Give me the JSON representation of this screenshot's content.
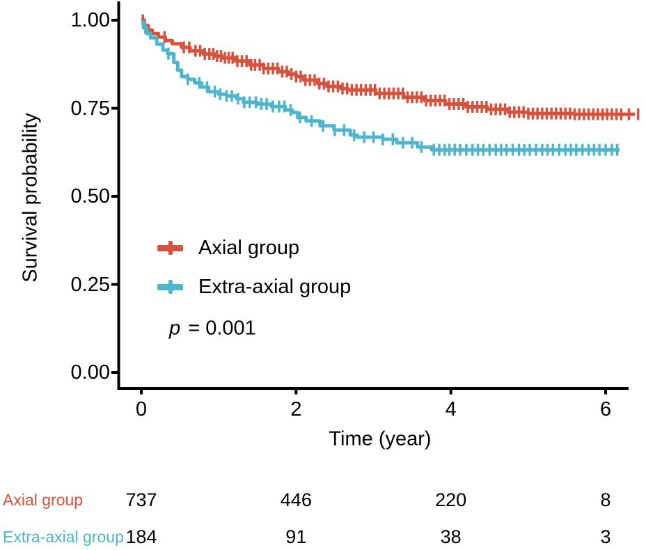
{
  "figure": {
    "background": "#ffffff",
    "axis_color": "#000000",
    "text_color": "#000000"
  },
  "chart_data": {
    "type": "line",
    "subtype": "kaplan-meier-step-survival",
    "title": "",
    "xlabel": "Time (year)",
    "ylabel": "Survival probability",
    "xlim": [
      0,
      6.5
    ],
    "ylim": [
      0,
      1.0
    ],
    "grid": false,
    "legend_position": "inside-center-left",
    "xticks": {
      "values": [
        0,
        2,
        4,
        6
      ],
      "labels": [
        "0",
        "2",
        "4",
        "6"
      ]
    },
    "yticks": {
      "values": [
        0,
        0.25,
        0.5,
        0.75,
        1.0
      ],
      "labels": [
        "0.00",
        "0.25",
        "0.50",
        "0.75",
        "1.00"
      ]
    },
    "p_italic": "p",
    "p_rest": " = 0.001",
    "series": [
      {
        "name": "Axial group",
        "color": "#D6523C",
        "steps": [
          [
            0,
            1.0
          ],
          [
            0.04,
            0.985
          ],
          [
            0.09,
            0.972
          ],
          [
            0.14,
            0.962
          ],
          [
            0.22,
            0.952
          ],
          [
            0.31,
            0.942
          ],
          [
            0.4,
            0.933
          ],
          [
            0.52,
            0.923
          ],
          [
            0.63,
            0.913
          ],
          [
            0.8,
            0.904
          ],
          [
            0.95,
            0.898
          ],
          [
            1.05,
            0.893
          ],
          [
            1.22,
            0.884
          ],
          [
            1.4,
            0.873
          ],
          [
            1.58,
            0.863
          ],
          [
            1.77,
            0.854
          ],
          [
            1.9,
            0.847
          ],
          [
            2.0,
            0.84
          ],
          [
            2.1,
            0.83
          ],
          [
            2.28,
            0.82
          ],
          [
            2.4,
            0.812
          ],
          [
            2.58,
            0.806
          ],
          [
            2.67,
            0.802
          ],
          [
            3.03,
            0.792
          ],
          [
            3.39,
            0.781
          ],
          [
            3.66,
            0.772
          ],
          [
            3.93,
            0.762
          ],
          [
            4.2,
            0.754
          ],
          [
            4.47,
            0.747
          ],
          [
            4.74,
            0.739
          ],
          [
            5.0,
            0.735
          ],
          [
            5.6,
            0.733
          ],
          [
            6.38,
            0.733
          ]
        ],
        "censor_times": [
          0.02,
          0.3,
          0.55,
          0.62,
          0.7,
          0.76,
          0.82,
          0.88,
          0.93,
          0.98,
          1.03,
          1.08,
          1.13,
          1.18,
          1.24,
          1.3,
          1.36,
          1.42,
          1.47,
          1.53,
          1.58,
          1.64,
          1.7,
          1.76,
          1.82,
          1.88,
          1.94,
          2.0,
          2.06,
          2.12,
          2.18,
          2.24,
          2.3,
          2.36,
          2.42,
          2.48,
          2.54,
          2.6,
          2.66,
          2.72,
          2.78,
          2.84,
          2.9,
          2.96,
          3.02,
          3.08,
          3.14,
          3.2,
          3.26,
          3.32,
          3.38,
          3.44,
          3.5,
          3.56,
          3.62,
          3.68,
          3.74,
          3.8,
          3.86,
          3.92,
          3.98,
          4.04,
          4.1,
          4.16,
          4.22,
          4.28,
          4.34,
          4.4,
          4.46,
          4.52,
          4.58,
          4.64,
          4.7,
          4.76,
          4.82,
          4.88,
          4.94,
          5.0,
          5.06,
          5.12,
          5.18,
          5.24,
          5.3,
          5.36,
          5.42,
          5.48,
          5.54,
          5.6,
          5.66,
          5.72,
          5.78,
          5.84,
          5.9,
          5.96,
          6.02,
          6.08,
          6.14,
          6.2,
          6.3,
          6.42
        ]
      },
      {
        "name": "Extra-axial group",
        "color": "#4DB6CD",
        "steps": [
          [
            0,
            0.995
          ],
          [
            0.03,
            0.978
          ],
          [
            0.07,
            0.962
          ],
          [
            0.12,
            0.95
          ],
          [
            0.2,
            0.932
          ],
          [
            0.28,
            0.915
          ],
          [
            0.34,
            0.905
          ],
          [
            0.42,
            0.88
          ],
          [
            0.47,
            0.858
          ],
          [
            0.52,
            0.84
          ],
          [
            0.6,
            0.832
          ],
          [
            0.69,
            0.822
          ],
          [
            0.78,
            0.81
          ],
          [
            0.87,
            0.797
          ],
          [
            1.0,
            0.79
          ],
          [
            1.1,
            0.785
          ],
          [
            1.23,
            0.777
          ],
          [
            1.32,
            0.767
          ],
          [
            1.5,
            0.762
          ],
          [
            1.68,
            0.755
          ],
          [
            1.86,
            0.745
          ],
          [
            1.95,
            0.738
          ],
          [
            2.02,
            0.724
          ],
          [
            2.13,
            0.714
          ],
          [
            2.31,
            0.7
          ],
          [
            2.49,
            0.688
          ],
          [
            2.7,
            0.674
          ],
          [
            2.79,
            0.668
          ],
          [
            3.12,
            0.662
          ],
          [
            3.3,
            0.652
          ],
          [
            3.57,
            0.64
          ],
          [
            3.75,
            0.632
          ],
          [
            6.18,
            0.632
          ]
        ],
        "censor_times": [
          0.05,
          0.35,
          0.6,
          0.75,
          0.85,
          0.95,
          1.02,
          1.1,
          1.17,
          1.25,
          1.33,
          1.4,
          1.48,
          1.55,
          1.62,
          1.7,
          1.78,
          1.85,
          1.93,
          2.05,
          2.2,
          2.35,
          2.5,
          2.62,
          2.75,
          2.88,
          3.0,
          3.12,
          3.25,
          3.38,
          3.5,
          3.62,
          3.78,
          3.85,
          3.92,
          3.98,
          4.05,
          4.12,
          4.2,
          4.28,
          4.35,
          4.42,
          4.5,
          4.58,
          4.65,
          4.72,
          4.8,
          4.88,
          4.95,
          5.02,
          5.1,
          5.18,
          5.25,
          5.32,
          5.4,
          5.48,
          5.55,
          5.62,
          5.7,
          5.78,
          5.85,
          5.92,
          6.0,
          6.08,
          6.15
        ]
      }
    ]
  },
  "risk_table": {
    "rows": [
      {
        "label": "Axial group",
        "color": "#D6523C",
        "counts": [
          737,
          446,
          220,
          8
        ]
      },
      {
        "label": "Extra-axial group",
        "color": "#4DB6CD",
        "counts": [
          184,
          91,
          38,
          3
        ]
      }
    ]
  }
}
